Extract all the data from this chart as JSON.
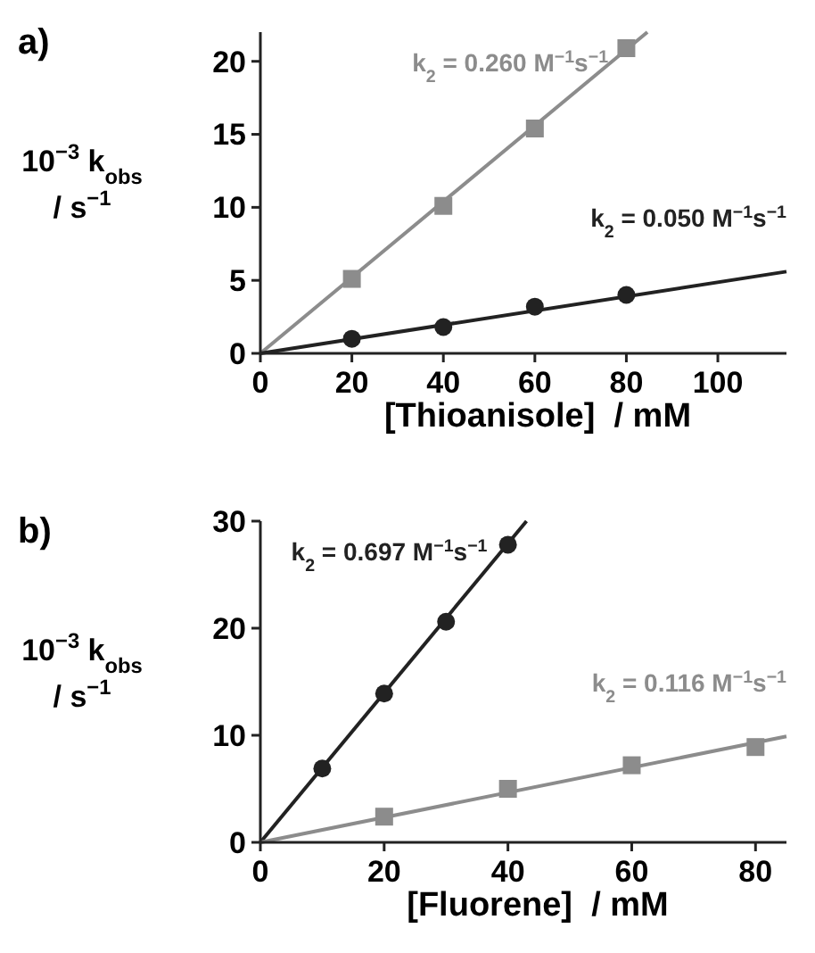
{
  "chart_data": [
    {
      "type": "scatter",
      "title": "a)",
      "xlabel": "[Thioanisole]  / mM",
      "ylabel": "10$^{−3}$ k$_{obs}$ / s$^{−1}$",
      "xlim": [
        0,
        115
      ],
      "ylim": [
        0,
        22
      ],
      "xticks": [
        0,
        20,
        40,
        60,
        80,
        100
      ],
      "yticks": [
        0,
        5,
        10,
        15,
        20
      ],
      "series": [
        {
          "type": "line",
          "name": "k$_{2}$ = 0.260 M$^{−1}$s$^{−1}$",
          "color": "#8c8c8c",
          "marker": "none",
          "x": [
            0,
            84.6
          ],
          "values": [
            0,
            22
          ]
        },
        {
          "type": "scatter",
          "color": "#8c8c8c",
          "marker": "square",
          "x": [
            20,
            40,
            60,
            80
          ],
          "values": [
            5.1,
            10.1,
            15.4,
            20.9
          ]
        },
        {
          "type": "line",
          "name": "k$_{2}$ = 0.050 M$^{−1}$s$^{−1}$",
          "color": "#222222",
          "marker": "none",
          "x": [
            0,
            115
          ],
          "values": [
            0,
            5.6
          ]
        },
        {
          "type": "scatter",
          "color": "#222222",
          "marker": "circle",
          "x": [
            20,
            40,
            60,
            80
          ],
          "values": [
            1.0,
            1.8,
            3.2,
            4.0
          ]
        }
      ]
    },
    {
      "type": "scatter",
      "title": "b)",
      "xlabel": "[Fluorene]  / mM",
      "ylabel": "10$^{−3}$ k$_{obs}$ / s$^{−1}$",
      "xlim": [
        0,
        85
      ],
      "ylim": [
        0,
        30
      ],
      "xticks": [
        0,
        20,
        40,
        60,
        80
      ],
      "yticks": [
        0,
        10,
        20,
        30
      ],
      "series": [
        {
          "type": "line",
          "name": "k$_{2}$ = 0.697 M$^{−1}$s$^{−1}$",
          "color": "#222222",
          "marker": "none",
          "x": [
            0,
            43
          ],
          "values": [
            0,
            30
          ]
        },
        {
          "type": "scatter",
          "color": "#222222",
          "marker": "circle",
          "x": [
            10,
            20,
            30,
            40
          ],
          "values": [
            6.9,
            13.9,
            20.6,
            27.8
          ]
        },
        {
          "type": "line",
          "name": "k$_{2}$ = 0.116 M$^{−1}$s$^{−1}$",
          "color": "#8c8c8c",
          "marker": "none",
          "x": [
            0,
            85
          ],
          "values": [
            0,
            9.9
          ]
        },
        {
          "type": "scatter",
          "color": "#8c8c8c",
          "marker": "square",
          "x": [
            20,
            40,
            60,
            80
          ],
          "values": [
            2.4,
            5.0,
            7.2,
            8.9
          ]
        }
      ]
    }
  ]
}
